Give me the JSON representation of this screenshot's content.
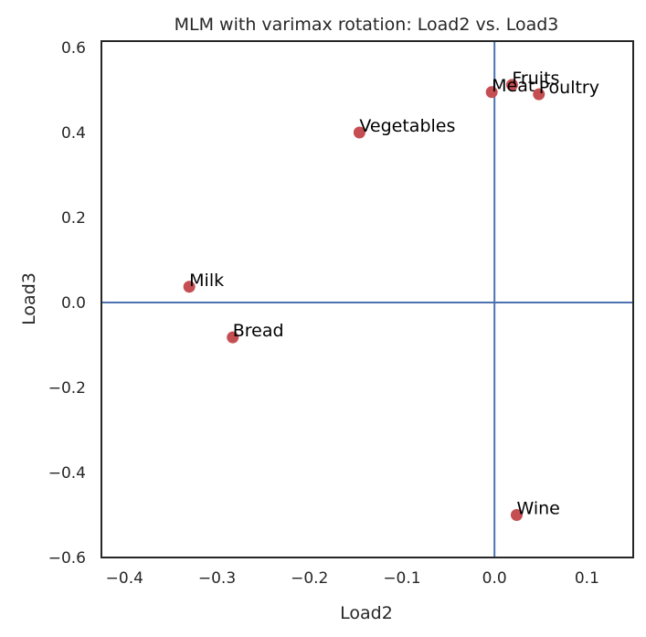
{
  "chart_data": {
    "type": "scatter",
    "title": "MLM with varimax rotation: Load2 vs. Load3",
    "xlabel": "Load2",
    "ylabel": "Load3",
    "xlim": [
      -0.425,
      0.15
    ],
    "ylim": [
      -0.6,
      0.615
    ],
    "xticks": [
      -0.4,
      -0.3,
      -0.2,
      -0.1,
      0.0,
      0.1
    ],
    "xtick_labels": [
      "−0.4",
      "−0.3",
      "−0.2",
      "−0.1",
      "0.0",
      "0.1"
    ],
    "yticks": [
      0.6,
      0.4,
      0.2,
      0.0,
      -0.2,
      -0.4,
      -0.6
    ],
    "ytick_labels": [
      "0.6",
      "0.4",
      "0.2",
      "0.0",
      "−0.2",
      "−0.4",
      "−0.6"
    ],
    "reference_lines": {
      "x": 0.0,
      "y": 0.0
    },
    "grid": false,
    "points": [
      {
        "label": "Milk",
        "x": -0.33,
        "y": 0.037
      },
      {
        "label": "Bread",
        "x": -0.283,
        "y": -0.082
      },
      {
        "label": "Vegetables",
        "x": -0.146,
        "y": 0.4
      },
      {
        "label": "Fruits",
        "x": 0.019,
        "y": 0.512
      },
      {
        "label": "Meat",
        "x": -0.003,
        "y": 0.495
      },
      {
        "label": "Poultry",
        "x": 0.048,
        "y": 0.49
      },
      {
        "label": "Wine",
        "x": 0.024,
        "y": -0.5
      }
    ],
    "colors": {
      "point": "#c44e52",
      "reference_line": "#4c72b0",
      "frame": "#262626",
      "label": "#000000"
    }
  }
}
